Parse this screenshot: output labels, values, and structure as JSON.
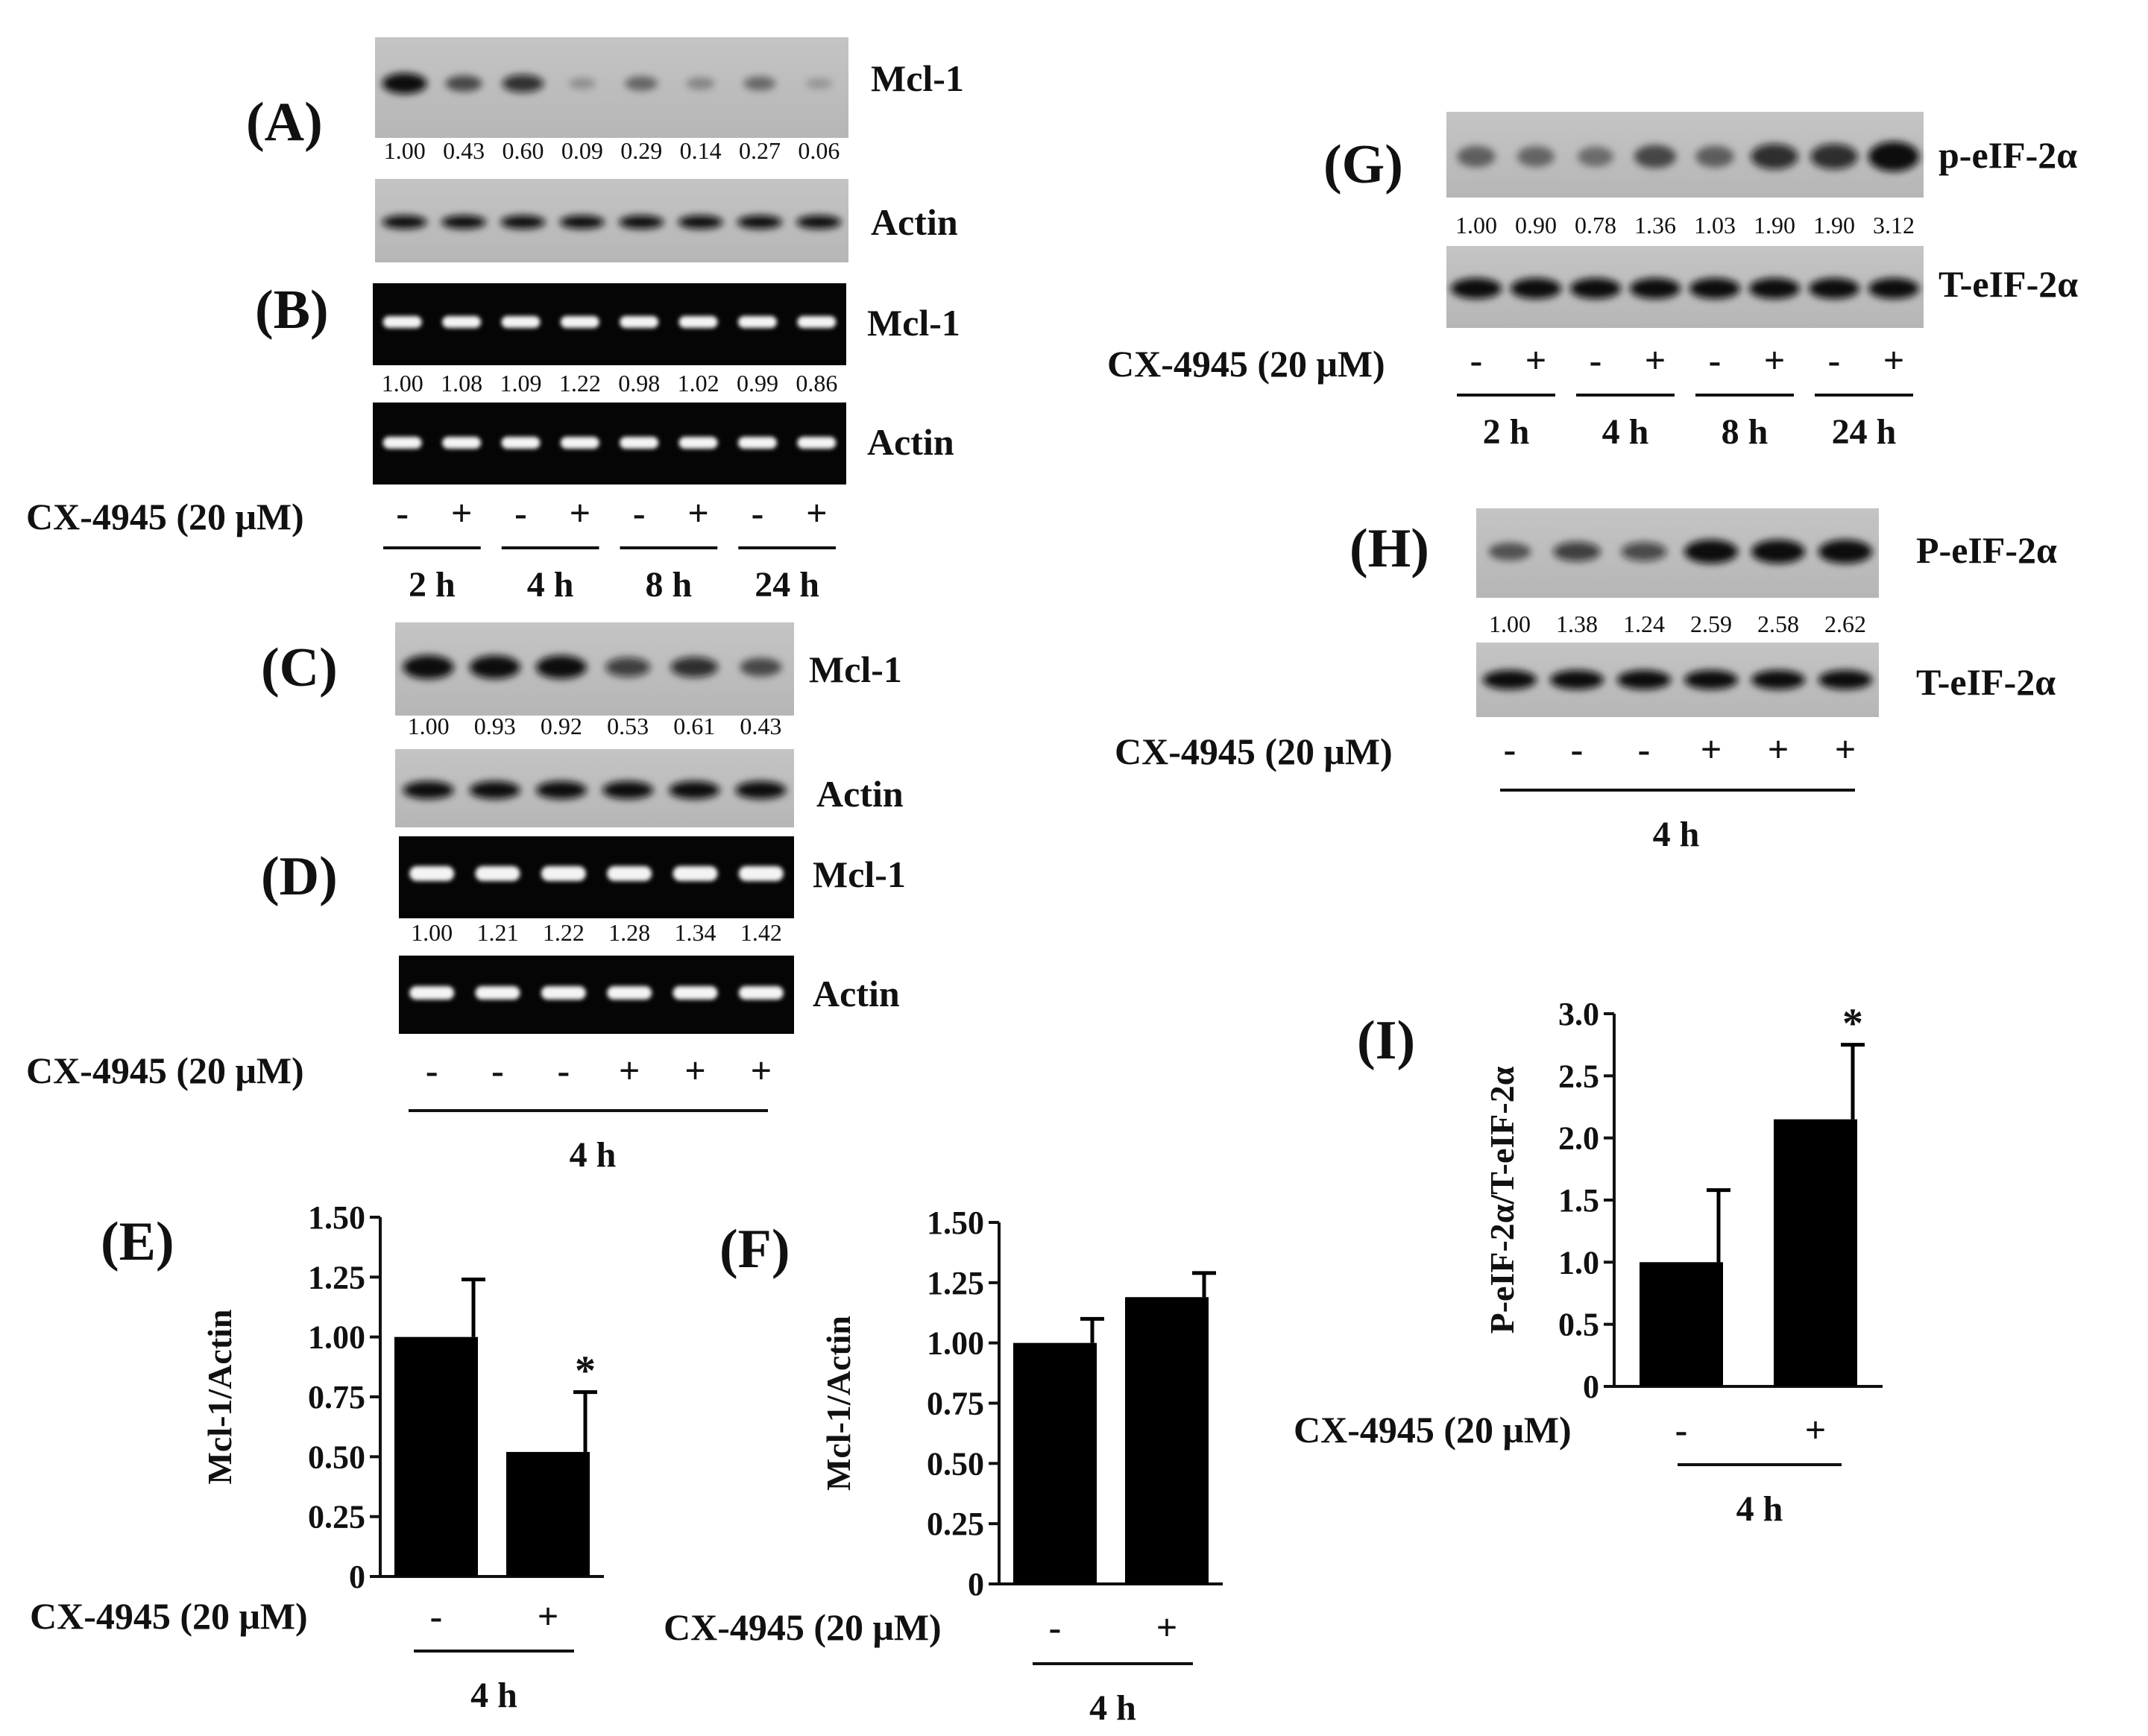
{
  "treatment_label": "CX-4945 (20 μM)",
  "panels": {
    "A": {
      "label": "(A)",
      "top_band": "Mcl-1",
      "bottom_band": "Actin",
      "values": [
        "1.00",
        "0.43",
        "0.60",
        "0.09",
        "0.29",
        "0.14",
        "0.27",
        "0.06"
      ],
      "top_intensity": [
        1.0,
        0.43,
        0.6,
        0.09,
        0.29,
        0.14,
        0.27,
        0.06
      ]
    },
    "B": {
      "label": "(B)",
      "top_band": "Mcl-1",
      "bottom_band": "Actin",
      "values": [
        "1.00",
        "1.08",
        "1.09",
        "1.22",
        "0.98",
        "1.02",
        "0.99",
        "0.86"
      ],
      "signs": [
        "-",
        "+",
        "-",
        "+",
        "-",
        "+",
        "-",
        "+"
      ],
      "times": [
        "2 h",
        "4 h",
        "8 h",
        "24 h"
      ]
    },
    "C": {
      "label": "(C)",
      "top_band": "Mcl-1",
      "bottom_band": "Actin",
      "values": [
        "1.00",
        "0.93",
        "0.92",
        "0.53",
        "0.61",
        "0.43"
      ],
      "top_intensity": [
        1.0,
        0.93,
        0.92,
        0.53,
        0.61,
        0.43
      ]
    },
    "D": {
      "label": "(D)",
      "top_band": "Mcl-1",
      "bottom_band": "Actin",
      "values": [
        "1.00",
        "1.21",
        "1.22",
        "1.28",
        "1.34",
        "1.42"
      ],
      "signs": [
        "-",
        "-",
        "-",
        "+",
        "+",
        "+"
      ],
      "time": "4 h"
    },
    "G": {
      "label": "(G)",
      "top_band": "p-eIF-2α",
      "bottom_band": "T-eIF-2α",
      "values": [
        "1.00",
        "0.90",
        "0.78",
        "1.36",
        "1.03",
        "1.90",
        "1.90",
        "3.12"
      ],
      "top_intensity": [
        1.0,
        0.9,
        0.78,
        1.36,
        1.03,
        1.9,
        1.9,
        3.12
      ],
      "signs": [
        "-",
        "+",
        "-",
        "+",
        "-",
        "+",
        "-",
        "+"
      ],
      "times": [
        "2 h",
        "4 h",
        "8 h",
        "24 h"
      ]
    },
    "H": {
      "label": "(H)",
      "top_band": "P-eIF-2α",
      "bottom_band": "T-eIF-2α",
      "values": [
        "1.00",
        "1.38",
        "1.24",
        "2.59",
        "2.58",
        "2.62"
      ],
      "top_intensity": [
        1.0,
        1.38,
        1.24,
        2.59,
        2.58,
        2.62
      ],
      "signs": [
        "-",
        "-",
        "-",
        "+",
        "+",
        "+"
      ],
      "time": "4 h"
    }
  },
  "chart_data": [
    {
      "panel": "(E)",
      "type": "bar",
      "categories": [
        "-",
        "+"
      ],
      "values": [
        1.0,
        0.52
      ],
      "errors": [
        0.24,
        0.25
      ],
      "significance": [
        "",
        "*"
      ],
      "ylabel": "Mcl-1/Actin",
      "ylim": [
        0,
        1.5
      ],
      "yticks": [
        "0",
        "0.25",
        "0.50",
        "0.75",
        "1.00",
        "1.25",
        "1.50"
      ],
      "group_label": "4 h"
    },
    {
      "panel": "(F)",
      "type": "bar",
      "categories": [
        "-",
        "+"
      ],
      "values": [
        1.0,
        1.19
      ],
      "errors": [
        0.1,
        0.1
      ],
      "significance": [
        "",
        ""
      ],
      "ylabel": "Mcl-1/Actin",
      "ylim": [
        0,
        1.5
      ],
      "yticks": [
        "0",
        "0.25",
        "0.50",
        "0.75",
        "1.00",
        "1.25",
        "1.50"
      ],
      "group_label": "4 h"
    },
    {
      "panel": "(I)",
      "type": "bar",
      "categories": [
        "-",
        "+"
      ],
      "values": [
        1.0,
        2.15
      ],
      "errors": [
        0.58,
        0.6
      ],
      "significance": [
        "",
        "*"
      ],
      "ylabel": "P-eIF-2α/T-eIF-2α",
      "ylim": [
        0,
        3.0
      ],
      "yticks": [
        "0",
        "0.5",
        "1.0",
        "1.5",
        "2.0",
        "2.5",
        "3.0"
      ],
      "group_label": "4 h"
    }
  ]
}
